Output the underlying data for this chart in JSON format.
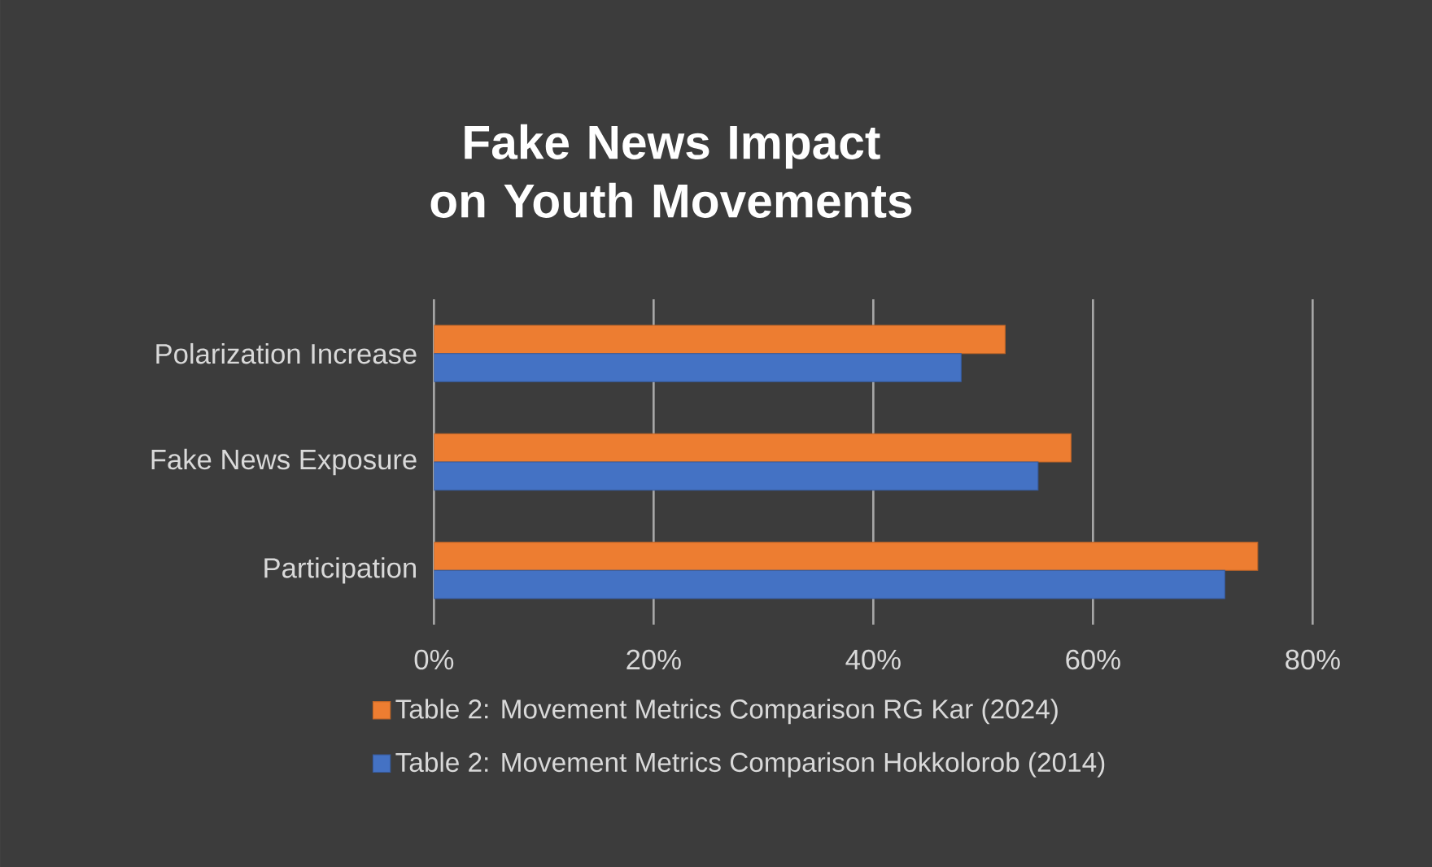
{
  "chart_data": {
    "type": "bar",
    "orientation": "horizontal",
    "title": "Fake News Impact on Youth Movements",
    "categories": [
      "Polarization Increase",
      "Fake News Exposure",
      "Participation"
    ],
    "series": [
      {
        "name": "Table 2: Movement Metrics Comparison RG Kar (2024)",
        "color": "#ed7d31",
        "values": [
          52,
          58,
          75
        ]
      },
      {
        "name": "Table 2: Movement Metrics Comparison Hokkolorob (2014)",
        "color": "#4472c4",
        "values": [
          48,
          55,
          72
        ]
      }
    ],
    "xlim": [
      0,
      80
    ],
    "xticks": [
      {
        "value": 0,
        "label": "0%"
      },
      {
        "value": 20,
        "label": "20%"
      },
      {
        "value": 40,
        "label": "40%"
      },
      {
        "value": 60,
        "label": "60%"
      },
      {
        "value": 80,
        "label": "80%"
      }
    ],
    "grid": "x",
    "legend": "bottom"
  }
}
